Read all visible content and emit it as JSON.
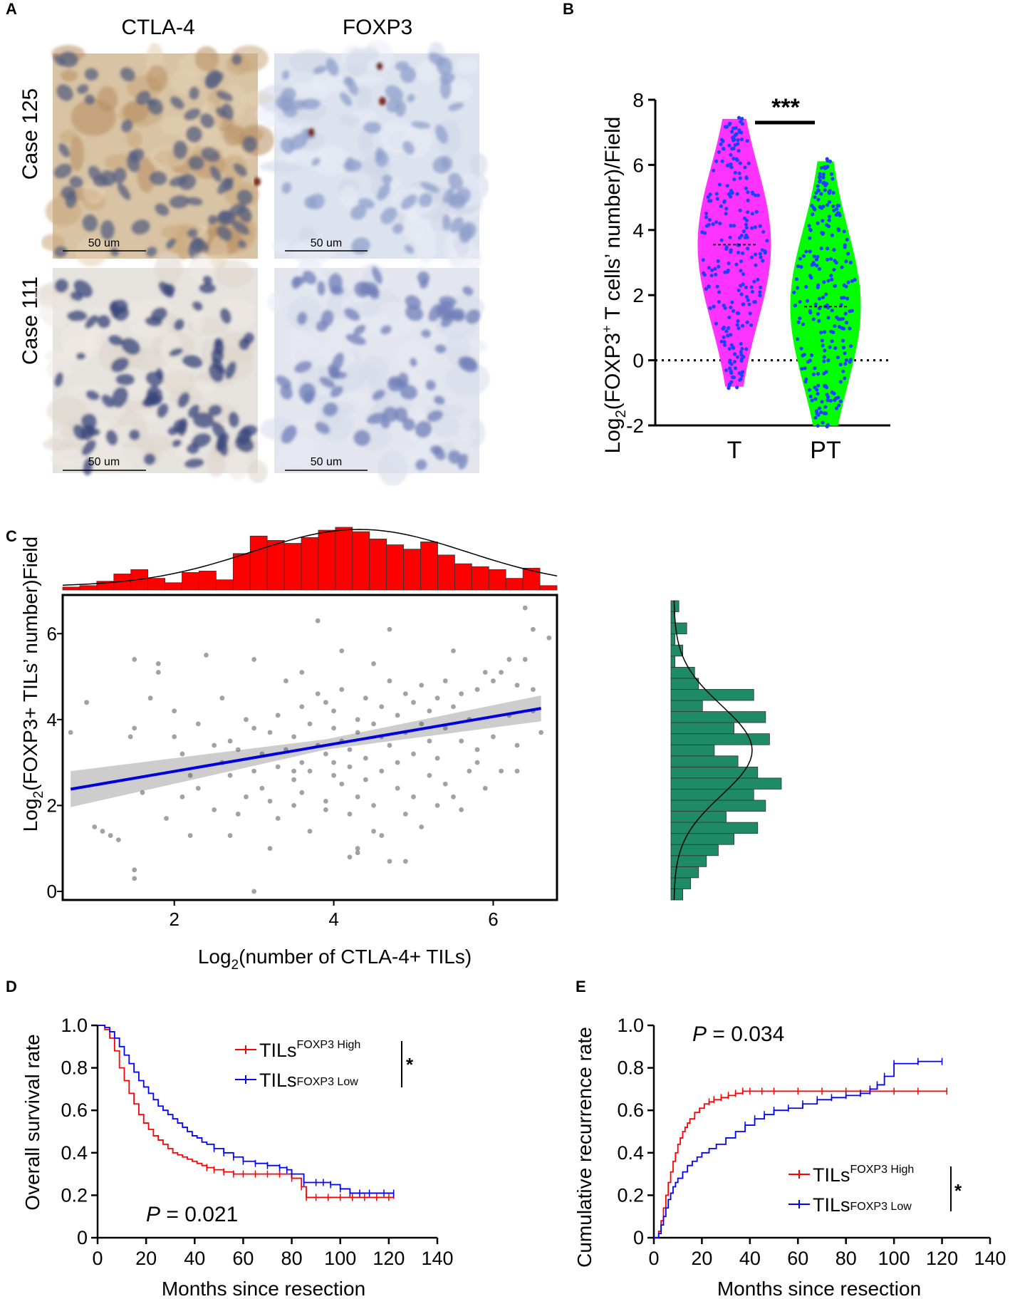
{
  "panels": {
    "A": {
      "label": "A",
      "col_headers": [
        "CTLA-4",
        "FOXP3"
      ],
      "row_labels": [
        "Case 125",
        "Case 111"
      ],
      "scale_bar": "50 um"
    },
    "B": {
      "label": "B"
    },
    "C": {
      "label": "C"
    },
    "D": {
      "label": "D"
    },
    "E": {
      "label": "E"
    }
  },
  "colors": {
    "violin_T": "#ff33ff",
    "violin_PT": "#00ff00",
    "dots": "#1f3fff",
    "hist_top": "#ff0000",
    "hist_right": "#1e8a66",
    "regression": "#0000dd",
    "km_high": "#ff0000",
    "km_low": "#0000ff"
  },
  "chart_data": [
    {
      "id": "B",
      "type": "violin",
      "categories": [
        "T",
        "PT"
      ],
      "ylabel_main": "Log",
      "ylabel_sub": "2",
      "ylabel_rest": "(FOXP3",
      "ylabel_sup": "+",
      "ylabel_end": " T cells’ number)/Field",
      "ylim": [
        -2,
        8
      ],
      "yticks": [
        "-2",
        "0",
        "2",
        "4",
        "6",
        "8"
      ],
      "significance": "***",
      "series": [
        {
          "name": "T",
          "min": -0.8,
          "max": 7.4,
          "median": 3.55
        },
        {
          "name": "PT",
          "min": -2.0,
          "max": 6.1,
          "median": 1.65
        }
      ],
      "reference_line": 0
    },
    {
      "id": "C",
      "type": "scatter",
      "xlabel_main": "Log",
      "xlabel_sub": "2",
      "xlabel_rest": "(number of CTLA-4+ TILs)",
      "ylabel_main": "Log",
      "ylabel_sub": "2",
      "ylabel_rest": "(FOXP3+ TILs’ number)Field",
      "xlim": [
        0.6,
        6.8
      ],
      "ylim": [
        -0.2,
        6.9
      ],
      "xticks": [
        "2",
        "4",
        "6"
      ],
      "yticks": [
        "0",
        "2",
        "4",
        "6"
      ],
      "regression": {
        "x": [
          0.7,
          6.6
        ],
        "y": [
          2.38,
          4.26
        ]
      },
      "top_hist": [
        2,
        3,
        6,
        11,
        14,
        8,
        5,
        12,
        13,
        7,
        25,
        37,
        34,
        32,
        36,
        41,
        43,
        40,
        35,
        31,
        28,
        33,
        24,
        18,
        16,
        14,
        8,
        15,
        3
      ],
      "right_hist": [
        3,
        5,
        7,
        9,
        12,
        16,
        22,
        14,
        24,
        21,
        28,
        22,
        17,
        11,
        25,
        16,
        24,
        8,
        21,
        7,
        6,
        1,
        3,
        1,
        4,
        1,
        2
      ],
      "points": [
        [
          0.7,
          3.7
        ],
        [
          0.9,
          4.4
        ],
        [
          1.0,
          1.5
        ],
        [
          1.1,
          1.4
        ],
        [
          1.2,
          1.3
        ],
        [
          1.3,
          1.2
        ],
        [
          1.45,
          3.6
        ],
        [
          1.5,
          0.5
        ],
        [
          1.5,
          0.3
        ],
        [
          1.5,
          3.8
        ],
        [
          1.5,
          5.4
        ],
        [
          1.6,
          2.3
        ],
        [
          1.7,
          4.5
        ],
        [
          1.8,
          5.1
        ],
        [
          1.8,
          5.3
        ],
        [
          1.9,
          1.7
        ],
        [
          2.0,
          3.6
        ],
        [
          2.0,
          4.2
        ],
        [
          2.1,
          2.2
        ],
        [
          2.1,
          3.2
        ],
        [
          2.2,
          2.7
        ],
        [
          2.3,
          2.4
        ],
        [
          2.3,
          3.9
        ],
        [
          2.4,
          5.5
        ],
        [
          2.5,
          3.4
        ],
        [
          2.5,
          1.9
        ],
        [
          2.6,
          3.0
        ],
        [
          2.6,
          4.5
        ],
        [
          2.7,
          2.7
        ],
        [
          2.7,
          3.5
        ],
        [
          2.7,
          1.3
        ],
        [
          2.8,
          1.8
        ],
        [
          2.8,
          3.3
        ],
        [
          2.9,
          2.2
        ],
        [
          2.9,
          4.0
        ],
        [
          3.0,
          5.4
        ],
        [
          3.0,
          2.8
        ],
        [
          3.0,
          0.0
        ],
        [
          3.0,
          3.8
        ],
        [
          3.1,
          2.4
        ],
        [
          3.1,
          3.2
        ],
        [
          3.2,
          2.1
        ],
        [
          3.2,
          3.7
        ],
        [
          3.3,
          4.1
        ],
        [
          3.3,
          2.9
        ],
        [
          3.3,
          1.7
        ],
        [
          3.4,
          3.3
        ],
        [
          3.4,
          4.9
        ],
        [
          3.5,
          2.6
        ],
        [
          3.5,
          3.6
        ],
        [
          3.5,
          2.0
        ],
        [
          3.6,
          5.1
        ],
        [
          3.6,
          3.0
        ],
        [
          3.6,
          4.3
        ],
        [
          3.6,
          2.3
        ],
        [
          3.7,
          3.9
        ],
        [
          3.7,
          1.4
        ],
        [
          3.7,
          2.8
        ],
        [
          3.8,
          6.3
        ],
        [
          3.8,
          3.4
        ],
        [
          3.8,
          4.6
        ],
        [
          3.9,
          2.1
        ],
        [
          3.9,
          3.2
        ],
        [
          3.9,
          1.9
        ],
        [
          4.0,
          2.7
        ],
        [
          4.0,
          3.8
        ],
        [
          4.0,
          4.2
        ],
        [
          4.0,
          3.0
        ],
        [
          4.1,
          5.6
        ],
        [
          4.1,
          2.5
        ],
        [
          4.1,
          3.5
        ],
        [
          4.1,
          4.7
        ],
        [
          4.2,
          0.8
        ],
        [
          4.2,
          1.8
        ],
        [
          4.2,
          3.3
        ],
        [
          4.2,
          2.9
        ],
        [
          4.3,
          4.0
        ],
        [
          4.3,
          2.2
        ],
        [
          4.3,
          3.7
        ],
        [
          4.3,
          0.9
        ],
        [
          4.4,
          4.5
        ],
        [
          4.4,
          3.1
        ],
        [
          4.4,
          2.6
        ],
        [
          4.5,
          5.3
        ],
        [
          4.5,
          1.4
        ],
        [
          4.5,
          3.9
        ],
        [
          4.5,
          2.0
        ],
        [
          4.6,
          3.6
        ],
        [
          4.6,
          4.3
        ],
        [
          4.6,
          2.8
        ],
        [
          4.7,
          6.1
        ],
        [
          4.7,
          0.7
        ],
        [
          4.7,
          3.4
        ],
        [
          4.8,
          4.1
        ],
        [
          4.8,
          2.4
        ],
        [
          4.8,
          3.0
        ],
        [
          4.9,
          4.6
        ],
        [
          4.9,
          3.7
        ],
        [
          4.9,
          1.8
        ],
        [
          5.0,
          3.2
        ],
        [
          5.0,
          4.4
        ],
        [
          5.0,
          2.2
        ],
        [
          5.1,
          3.9
        ],
        [
          5.1,
          1.5
        ],
        [
          5.1,
          4.8
        ],
        [
          5.2,
          2.7
        ],
        [
          5.2,
          3.5
        ],
        [
          5.2,
          4.2
        ],
        [
          5.3,
          4.5
        ],
        [
          5.3,
          3.1
        ],
        [
          5.3,
          2.0
        ],
        [
          5.4,
          4.9
        ],
        [
          5.4,
          2.5
        ],
        [
          5.4,
          3.8
        ],
        [
          5.5,
          2.2
        ],
        [
          5.5,
          4.3
        ],
        [
          5.5,
          5.6
        ],
        [
          5.6,
          3.5
        ],
        [
          5.6,
          1.9
        ],
        [
          5.6,
          4.6
        ],
        [
          5.7,
          4.0
        ],
        [
          5.7,
          2.8
        ],
        [
          5.8,
          4.7
        ],
        [
          5.8,
          3.3
        ],
        [
          5.9,
          2.4
        ],
        [
          5.9,
          5.1
        ],
        [
          6.0,
          3.6
        ],
        [
          6.0,
          4.9
        ],
        [
          6.1,
          5.1
        ],
        [
          6.1,
          2.8
        ],
        [
          6.2,
          4.1
        ],
        [
          6.2,
          5.4
        ],
        [
          6.3,
          3.4
        ],
        [
          6.3,
          4.8
        ],
        [
          6.4,
          6.6
        ],
        [
          6.4,
          5.4
        ],
        [
          6.5,
          4.7
        ],
        [
          6.5,
          6.1
        ],
        [
          6.6,
          3.7
        ],
        [
          6.7,
          5.9
        ],
        [
          6.5,
          4.2
        ],
        [
          6.3,
          2.8
        ],
        [
          4.6,
          1.3
        ],
        [
          4.9,
          0.7
        ],
        [
          3.2,
          1.0
        ],
        [
          4.3,
          1.0
        ],
        [
          3.5,
          2.8
        ],
        [
          2.2,
          1.3
        ],
        [
          5.8,
          3.0
        ],
        [
          4.7,
          4.9
        ],
        [
          3.9,
          4.4
        ]
      ]
    },
    {
      "id": "D",
      "type": "line",
      "xlabel": "Months since resection",
      "ylabel": "Overall survival rate",
      "xlim": [
        0,
        140
      ],
      "ylim": [
        0,
        1.0
      ],
      "xticks": [
        "0",
        "20",
        "40",
        "60",
        "80",
        "100",
        "120",
        "140"
      ],
      "yticks": [
        "0",
        "0.2",
        "0.4",
        "0.6",
        "0.8",
        "1.0"
      ],
      "pvalue_label": "P",
      "pvalue_text": " = 0.021",
      "legend_sig": "*",
      "series": [
        {
          "name": "TILs",
          "sup": "FOXP3 High",
          "color": "#ff0000",
          "x": [
            0,
            3,
            5,
            7,
            9,
            11,
            13,
            15,
            17,
            19,
            21,
            23,
            25,
            27,
            29,
            31,
            33,
            35,
            37,
            39,
            41,
            43,
            45,
            48,
            52,
            56,
            60,
            65,
            70,
            75,
            80,
            84,
            86,
            90,
            95,
            100,
            105,
            110,
            115,
            120,
            122
          ],
          "y": [
            1.0,
            0.98,
            0.94,
            0.88,
            0.8,
            0.74,
            0.68,
            0.63,
            0.58,
            0.54,
            0.51,
            0.48,
            0.46,
            0.44,
            0.42,
            0.4,
            0.39,
            0.38,
            0.37,
            0.36,
            0.35,
            0.34,
            0.33,
            0.32,
            0.31,
            0.3,
            0.3,
            0.3,
            0.3,
            0.3,
            0.28,
            0.24,
            0.19,
            0.19,
            0.19,
            0.19,
            0.19,
            0.19,
            0.19,
            0.19,
            0.2
          ]
        },
        {
          "name": "TILs",
          "sup": "FOXP3 Low",
          "color": "#0000ff",
          "x": [
            0,
            3,
            5,
            7,
            9,
            11,
            13,
            15,
            17,
            19,
            21,
            23,
            25,
            27,
            29,
            31,
            33,
            35,
            37,
            39,
            41,
            43,
            45,
            48,
            52,
            56,
            60,
            65,
            70,
            75,
            78,
            80,
            85,
            90,
            93,
            96,
            100,
            104,
            108,
            112,
            118,
            122
          ],
          "y": [
            1.0,
            0.99,
            0.97,
            0.94,
            0.9,
            0.86,
            0.82,
            0.78,
            0.74,
            0.71,
            0.68,
            0.65,
            0.62,
            0.6,
            0.58,
            0.56,
            0.54,
            0.52,
            0.5,
            0.48,
            0.47,
            0.45,
            0.44,
            0.42,
            0.4,
            0.38,
            0.36,
            0.35,
            0.34,
            0.33,
            0.32,
            0.3,
            0.26,
            0.26,
            0.26,
            0.25,
            0.23,
            0.21,
            0.21,
            0.21,
            0.21,
            0.21
          ]
        }
      ]
    },
    {
      "id": "E",
      "type": "line",
      "xlabel": "Months since resection",
      "ylabel": "Cumulative recurrence rate",
      "xlim": [
        0,
        140
      ],
      "ylim": [
        0,
        1.0
      ],
      "xticks": [
        "0",
        "20",
        "40",
        "60",
        "80",
        "100",
        "120",
        "140"
      ],
      "yticks": [
        "0",
        "0.2",
        "0.4",
        "0.6",
        "0.8",
        "1.0"
      ],
      "pvalue_label": "P",
      "pvalue_text": " = 0.034",
      "legend_sig": "*",
      "series": [
        {
          "name": "TILs",
          "sup": "FOXP3 High",
          "color": "#ff0000",
          "x": [
            0,
            2,
            3,
            4,
            5,
            6,
            7,
            8,
            9,
            10,
            11,
            12,
            13,
            14,
            15,
            17,
            19,
            21,
            23,
            25,
            28,
            31,
            34,
            37,
            40,
            45,
            50,
            60,
            70,
            80,
            90,
            100,
            110,
            122
          ],
          "y": [
            0,
            0.03,
            0.08,
            0.14,
            0.2,
            0.26,
            0.31,
            0.36,
            0.4,
            0.44,
            0.47,
            0.5,
            0.52,
            0.54,
            0.56,
            0.59,
            0.61,
            0.63,
            0.64,
            0.65,
            0.66,
            0.67,
            0.68,
            0.69,
            0.69,
            0.69,
            0.69,
            0.69,
            0.69,
            0.69,
            0.69,
            0.69,
            0.69,
            0.69
          ]
        },
        {
          "name": "TILs",
          "sup": "FOXP3 Low",
          "color": "#0000ff",
          "x": [
            0,
            2,
            3,
            4,
            5,
            6,
            7,
            8,
            9,
            10,
            12,
            14,
            16,
            18,
            20,
            23,
            26,
            30,
            34,
            38,
            42,
            46,
            50,
            56,
            62,
            68,
            74,
            80,
            86,
            90,
            93,
            96,
            100,
            110,
            120
          ],
          "y": [
            0,
            0.02,
            0.06,
            0.1,
            0.14,
            0.18,
            0.21,
            0.24,
            0.26,
            0.28,
            0.31,
            0.34,
            0.36,
            0.38,
            0.4,
            0.42,
            0.44,
            0.47,
            0.5,
            0.53,
            0.56,
            0.58,
            0.6,
            0.61,
            0.63,
            0.65,
            0.66,
            0.67,
            0.68,
            0.7,
            0.72,
            0.76,
            0.82,
            0.83,
            0.83
          ]
        }
      ]
    }
  ]
}
